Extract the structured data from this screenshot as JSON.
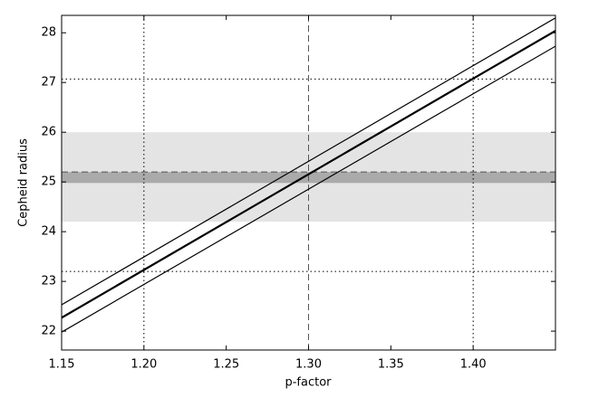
{
  "chart_data": {
    "type": "line",
    "xlabel": "p-factor",
    "ylabel": "Cepheid radius",
    "xlim": [
      1.15,
      1.45
    ],
    "ylim": [
      21.62,
      28.35
    ],
    "xticks": [
      1.15,
      {
        "value": 1.2,
        "label": "1.20"
      },
      1.25,
      {
        "value": 1.3,
        "label": "1.30"
      },
      1.35,
      {
        "value": 1.4,
        "label": "1.40"
      }
    ],
    "yticks": [
      22,
      23,
      24,
      25,
      26,
      27,
      28
    ],
    "x": [
      1.15,
      1.45
    ],
    "series": [
      {
        "color": "#000000",
        "width": 1.2,
        "values": [
          22.53,
          28.3
        ]
      },
      {
        "color": "#000000",
        "width": 2.2,
        "values": [
          22.27,
          28.04
        ]
      },
      {
        "color": "#000000",
        "width": 1.2,
        "values": [
          21.98,
          27.73
        ]
      }
    ],
    "bands": [
      {
        "from": 24.2,
        "to": 26.0,
        "color": "#e4e4e4"
      },
      {
        "from": 24.98,
        "to": 25.2,
        "color": "#aaaaaa"
      }
    ],
    "reference_lines": [
      {
        "axis": "y",
        "value": 25.2,
        "style": "dashed",
        "color": "#555555"
      },
      {
        "axis": "x",
        "value": 1.3,
        "style": "dashed",
        "color": "#555555"
      },
      {
        "axis": "x",
        "value": 1.2,
        "style": "dotted",
        "color": "#000000"
      },
      {
        "axis": "x",
        "value": 1.4,
        "style": "dotted",
        "color": "#000000"
      },
      {
        "axis": "y",
        "value": 27.07,
        "style": "dotted",
        "color": "#000000"
      },
      {
        "axis": "y",
        "value": 23.2,
        "style": "dotted",
        "color": "#000000"
      }
    ]
  }
}
